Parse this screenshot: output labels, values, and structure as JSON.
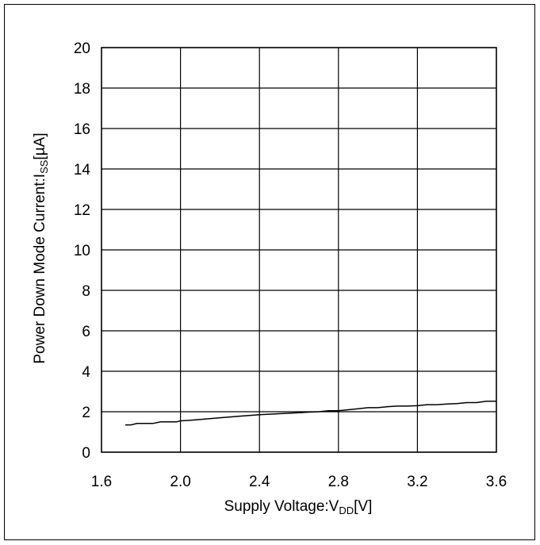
{
  "chart_data": {
    "type": "line",
    "xlabel": {
      "main": "Supply Voltage:V",
      "sub": "DD",
      "unit": "[V]"
    },
    "ylabel": {
      "main": "Power Down Mode Current:I",
      "sub": "SS",
      "unit": "[µA]"
    },
    "xlim": [
      1.6,
      3.6
    ],
    "ylim": [
      0,
      20
    ],
    "x_ticks": [
      "1.6",
      "2.0",
      "2.4",
      "2.8",
      "3.2",
      "3.6"
    ],
    "y_ticks": [
      "0",
      "2",
      "4",
      "6",
      "8",
      "10",
      "12",
      "14",
      "16",
      "18",
      "20"
    ],
    "grid": true,
    "series": [
      {
        "color": "#000000",
        "x": [
          1.72,
          1.75,
          1.78,
          1.82,
          1.86,
          1.9,
          1.94,
          1.98,
          2.0,
          2.05,
          2.1,
          2.2,
          2.3,
          2.4,
          2.5,
          2.6,
          2.65,
          2.7,
          2.75,
          2.8,
          2.85,
          2.9,
          2.95,
          3.0,
          3.05,
          3.1,
          3.15,
          3.2,
          3.25,
          3.3,
          3.35,
          3.4,
          3.45,
          3.5,
          3.55,
          3.6
        ],
        "y": [
          1.35,
          1.35,
          1.42,
          1.42,
          1.42,
          1.5,
          1.5,
          1.5,
          1.55,
          1.58,
          1.62,
          1.7,
          1.78,
          1.85,
          1.9,
          1.95,
          1.98,
          2.0,
          2.05,
          2.05,
          2.1,
          2.15,
          2.2,
          2.2,
          2.25,
          2.28,
          2.28,
          2.3,
          2.35,
          2.35,
          2.38,
          2.4,
          2.45,
          2.45,
          2.52,
          2.52
        ]
      }
    ]
  }
}
